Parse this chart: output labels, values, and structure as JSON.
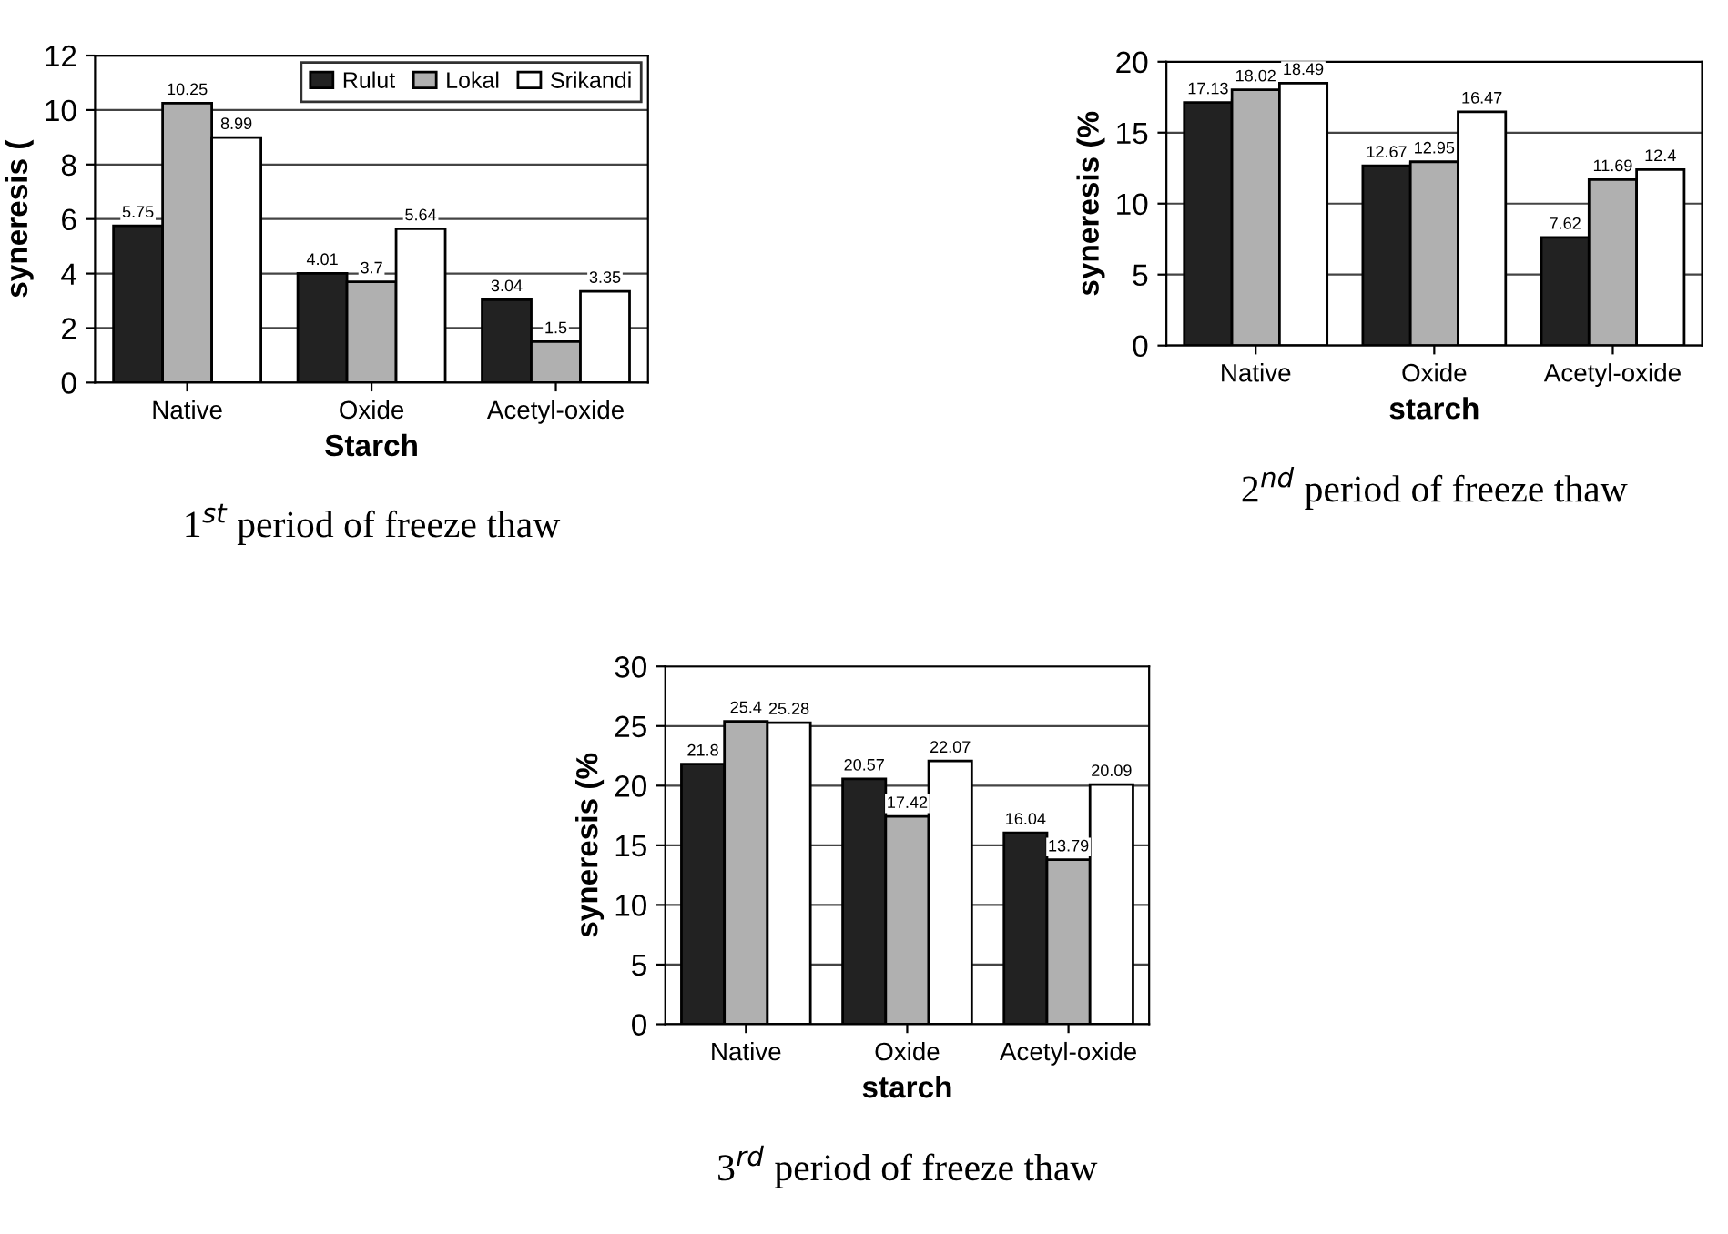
{
  "chart_data": [
    {
      "type": "bar",
      "title": "1$^{st}$ period of freeze thaw",
      "xlabel": "Starch",
      "ylabel": "syneresis (",
      "categories": [
        "Native",
        "Oxide",
        "Acetyl-oxide"
      ],
      "series": [
        {
          "name": "Rulut",
          "color": "#222222",
          "values": [
            5.75,
            4.01,
            3.04
          ]
        },
        {
          "name": "Lokal",
          "color": "#b0b0b0",
          "values": [
            10.25,
            3.7,
            1.5
          ]
        },
        {
          "name": "Srikandi",
          "color": "#ffffff",
          "values": [
            8.99,
            5.64,
            3.35
          ]
        }
      ],
      "ylim": [
        0,
        12
      ],
      "yticks": [
        0,
        2,
        4,
        6,
        8,
        10,
        12
      ],
      "grid": "y",
      "legend": "top right",
      "data_labels": true
    },
    {
      "type": "bar",
      "title": "2$^{nd}$ period of freeze thaw",
      "xlabel": "starch",
      "ylabel": "syneresis (%",
      "categories": [
        "Native",
        "Oxide",
        "Acetyl-oxide"
      ],
      "series": [
        {
          "color": "#222222",
          "values": [
            17.13,
            12.67,
            7.62
          ]
        },
        {
          "color": "#b0b0b0",
          "values": [
            18.02,
            12.95,
            11.69
          ]
        },
        {
          "color": "#ffffff",
          "values": [
            18.49,
            16.47,
            12.4
          ]
        }
      ],
      "ylim": [
        0,
        20
      ],
      "yticks": [
        0,
        5,
        10,
        15,
        20
      ],
      "grid": "y",
      "data_labels": true
    },
    {
      "type": "bar",
      "title": "3$^{rd}$ period of freeze thaw",
      "xlabel": "starch",
      "ylabel": "syneresis (%",
      "categories": [
        "Native",
        "Oxide",
        "Acetyl-oxide"
      ],
      "series": [
        {
          "color": "#222222",
          "values": [
            21.8,
            20.57,
            16.04
          ]
        },
        {
          "color": "#b0b0b0",
          "values": [
            25.4,
            17.42,
            13.79
          ]
        },
        {
          "color": "#ffffff",
          "values": [
            25.28,
            22.07,
            20.09
          ]
        }
      ],
      "ylim": [
        0,
        30
      ],
      "yticks": [
        0,
        5,
        10,
        15,
        20,
        25,
        30
      ],
      "grid": "y",
      "data_labels": true
    }
  ]
}
